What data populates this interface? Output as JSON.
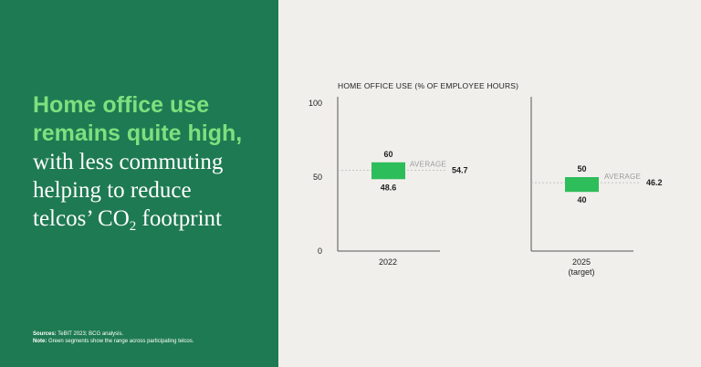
{
  "headline": {
    "highlight_line1": "Home office use",
    "highlight_line2": "remains quite high,",
    "line3": "with less commuting",
    "line4": "helping to reduce",
    "line5_pre": "telcos’ CO",
    "line5_sub": "2",
    "line5_post": " footprint"
  },
  "notes": {
    "sources_label": "Sources:",
    "sources_text": "TeBIT 2023; BCG analysis.",
    "note_label": "Note:",
    "note_text": "Green segments show the range across participating telcos."
  },
  "colors": {
    "left_panel": "#1e7a52",
    "highlight_text": "#7ee07e",
    "right_panel": "#f1efec",
    "bar": "#2ebd5b",
    "average_line": "#b5b5b5",
    "axis": "#555555"
  },
  "chart_data": {
    "type": "range",
    "title": "HOME OFFICE USE (% OF EMPLOYEE HOURS)",
    "y_ticks": [
      "100",
      "50",
      "0"
    ],
    "ylim": [
      0,
      100
    ],
    "average_label": "AVERAGE",
    "series": [
      {
        "category_line1": "2022",
        "category_line2": "",
        "low": 48.6,
        "high": 60,
        "average": 54.7,
        "low_label": "48.6",
        "high_label": "60",
        "average_value_label": "54.7"
      },
      {
        "category_line1": "2025",
        "category_line2": "(target)",
        "low": 40,
        "high": 50,
        "average": 46.2,
        "low_label": "40",
        "high_label": "50",
        "average_value_label": "46.2"
      }
    ]
  }
}
